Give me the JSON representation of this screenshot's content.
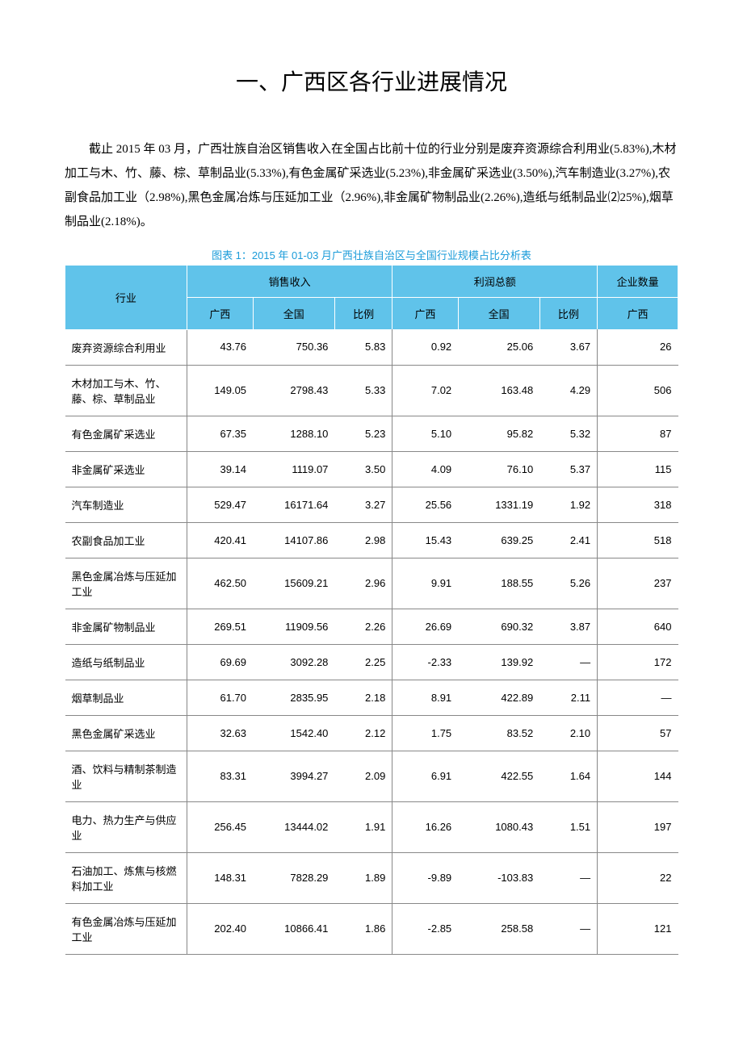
{
  "title": "一、广西区各行业进展情况",
  "paragraph": "截止 2015 年 03 月，广西壮族自治区销售收入在全国占比前十位的行业分别是废弃资源综合利用业(5.83%),木材加工与木、竹、藤、棕、草制品业(5.33%),有色金属矿采选业(5.23%),非金属矿采选业(3.50%),汽车制造业(3.27%),农副食品加工业（2.98%),黑色金属冶炼与压延加工业（2.96%),非金属矿物制品业(2.26%),造纸与纸制品业⑵25%),烟草制品业(2.18%)。",
  "table": {
    "caption": "图表 1：2015 年 01-03 月广西壮族自治区与全国行业规模占比分析表",
    "header_top": {
      "industry": "行业",
      "revenue": "销售收入",
      "profit": "利润总额",
      "enterprises": "企业数量"
    },
    "header_sub": {
      "gx": "广西",
      "nation": "全国",
      "ratio": "比例"
    },
    "colors": {
      "header_bg": "#60c3ea",
      "caption_color": "#1a9bd9",
      "border": "#888888"
    },
    "rows": [
      {
        "industry": "废弃资源综合利用业",
        "rev_gx": "43.76",
        "rev_nat": "750.36",
        "rev_r": "5.83",
        "prof_gx": "0.92",
        "prof_nat": "25.06",
        "prof_r": "3.67",
        "ent": "26"
      },
      {
        "industry": "木材加工与木、竹、藤、棕、草制品业",
        "rev_gx": "149.05",
        "rev_nat": "2798.43",
        "rev_r": "5.33",
        "prof_gx": "7.02",
        "prof_nat": "163.48",
        "prof_r": "4.29",
        "ent": "506"
      },
      {
        "industry": "有色金属矿采选业",
        "rev_gx": "67.35",
        "rev_nat": "1288.10",
        "rev_r": "5.23",
        "prof_gx": "5.10",
        "prof_nat": "95.82",
        "prof_r": "5.32",
        "ent": "87"
      },
      {
        "industry": "非金属矿采选业",
        "rev_gx": "39.14",
        "rev_nat": "1119.07",
        "rev_r": "3.50",
        "prof_gx": "4.09",
        "prof_nat": "76.10",
        "prof_r": "5.37",
        "ent": "115"
      },
      {
        "industry": "汽车制造业",
        "rev_gx": "529.47",
        "rev_nat": "16171.64",
        "rev_r": "3.27",
        "prof_gx": "25.56",
        "prof_nat": "1331.19",
        "prof_r": "1.92",
        "ent": "318"
      },
      {
        "industry": "农副食品加工业",
        "rev_gx": "420.41",
        "rev_nat": "14107.86",
        "rev_r": "2.98",
        "prof_gx": "15.43",
        "prof_nat": "639.25",
        "prof_r": "2.41",
        "ent": "518"
      },
      {
        "industry": "黑色金属冶炼与压延加工业",
        "rev_gx": "462.50",
        "rev_nat": "15609.21",
        "rev_r": "2.96",
        "prof_gx": "9.91",
        "prof_nat": "188.55",
        "prof_r": "5.26",
        "ent": "237"
      },
      {
        "industry": "非金属矿物制品业",
        "rev_gx": "269.51",
        "rev_nat": "11909.56",
        "rev_r": "2.26",
        "prof_gx": "26.69",
        "prof_nat": "690.32",
        "prof_r": "3.87",
        "ent": "640"
      },
      {
        "industry": "造纸与纸制品业",
        "rev_gx": "69.69",
        "rev_nat": "3092.28",
        "rev_r": "2.25",
        "prof_gx": "-2.33",
        "prof_nat": "139.92",
        "prof_r": "—",
        "ent": "172"
      },
      {
        "industry": "烟草制品业",
        "rev_gx": "61.70",
        "rev_nat": "2835.95",
        "rev_r": "2.18",
        "prof_gx": "8.91",
        "prof_nat": "422.89",
        "prof_r": "2.11",
        "ent": "—"
      },
      {
        "industry": "黑色金属矿采选业",
        "rev_gx": "32.63",
        "rev_nat": "1542.40",
        "rev_r": "2.12",
        "prof_gx": "1.75",
        "prof_nat": "83.52",
        "prof_r": "2.10",
        "ent": "57"
      },
      {
        "industry": "酒、饮料与精制茶制造业",
        "rev_gx": "83.31",
        "rev_nat": "3994.27",
        "rev_r": "2.09",
        "prof_gx": "6.91",
        "prof_nat": "422.55",
        "prof_r": "1.64",
        "ent": "144"
      },
      {
        "industry": "电力、热力生产与供应业",
        "rev_gx": "256.45",
        "rev_nat": "13444.02",
        "rev_r": "1.91",
        "prof_gx": "16.26",
        "prof_nat": "1080.43",
        "prof_r": "1.51",
        "ent": "197"
      },
      {
        "industry": "石油加工、炼焦与核燃料加工业",
        "rev_gx": "148.31",
        "rev_nat": "7828.29",
        "rev_r": "1.89",
        "prof_gx": "-9.89",
        "prof_nat": "-103.83",
        "prof_r": "—",
        "ent": "22"
      },
      {
        "industry": "有色金属冶炼与压延加工业",
        "rev_gx": "202.40",
        "rev_nat": "10866.41",
        "rev_r": "1.86",
        "prof_gx": "-2.85",
        "prof_nat": "258.58",
        "prof_r": "—",
        "ent": "121"
      }
    ]
  }
}
